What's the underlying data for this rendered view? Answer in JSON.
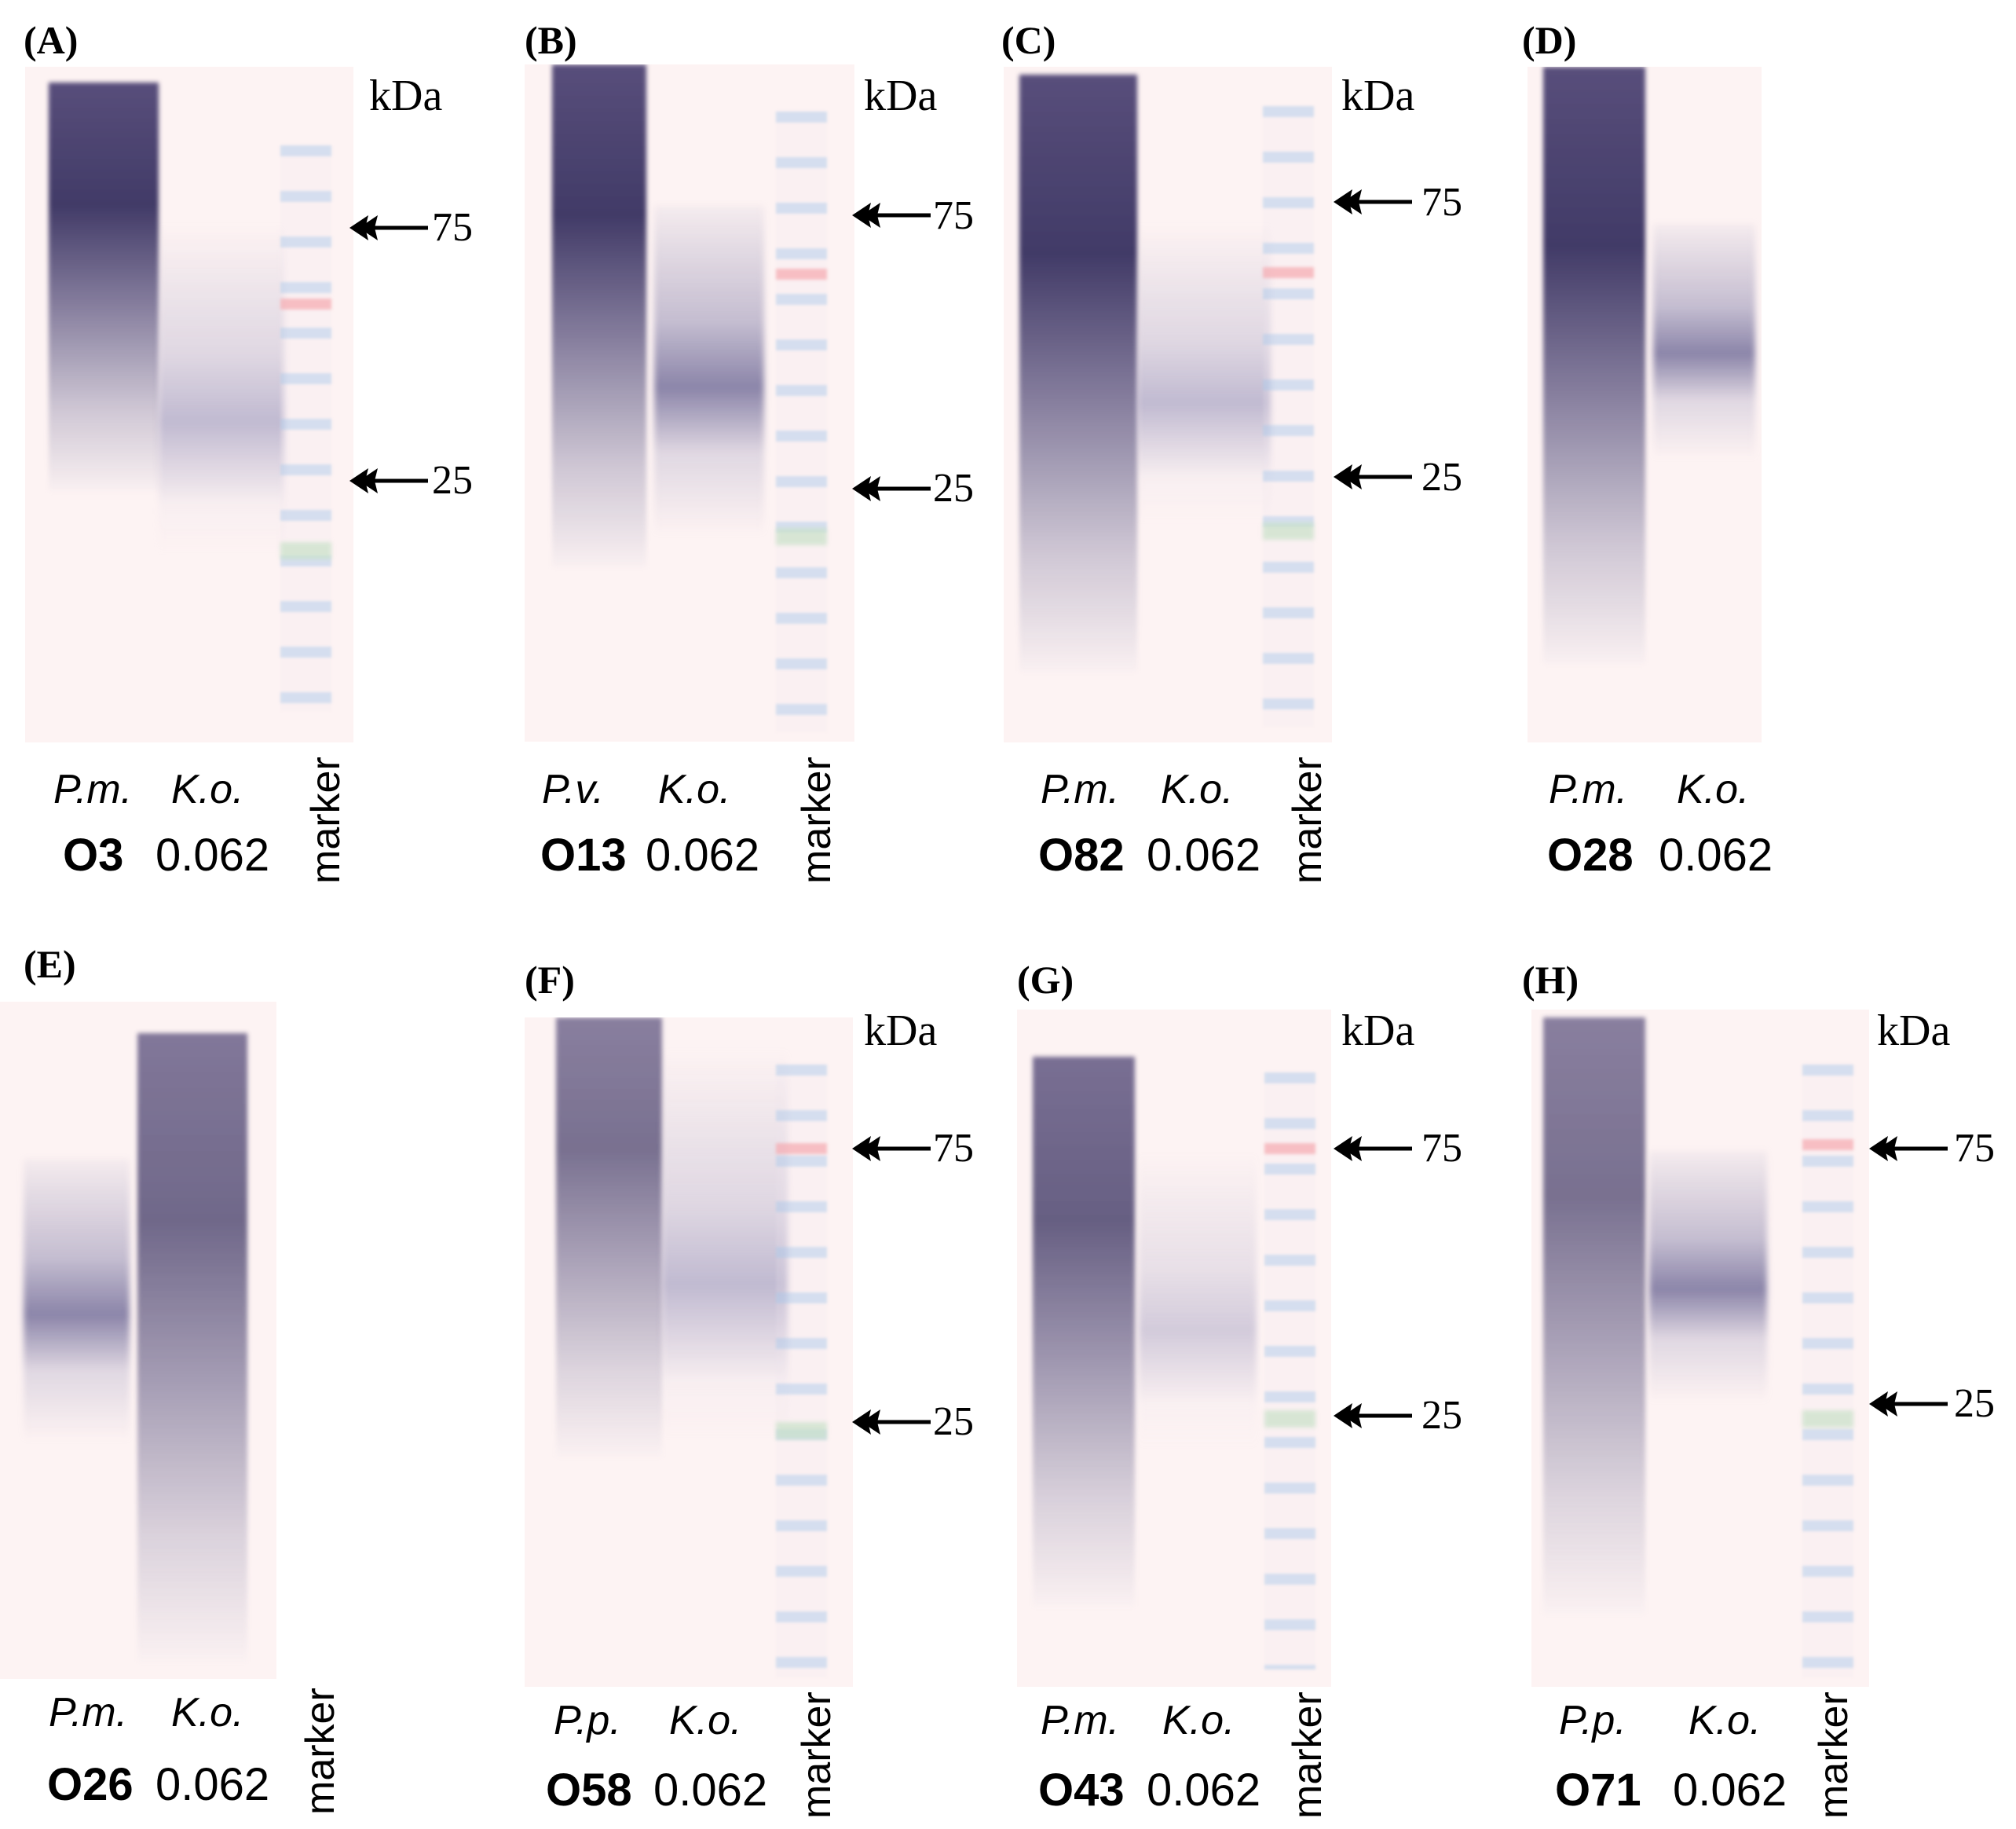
{
  "units": "kDa",
  "marker_label": "marker",
  "mw_values": {
    "high": "75",
    "low": "25"
  },
  "panels": [
    {
      "letter": "(A)",
      "lane1": "P.m.",
      "lane2": "K.o.",
      "serotype": "O3",
      "dose": "0.062",
      "has_marker": true
    },
    {
      "letter": "(B)",
      "lane1": "P.v.",
      "lane2": "K.o.",
      "serotype": "O13",
      "dose": "0.062",
      "has_marker": true
    },
    {
      "letter": "(C)",
      "lane1": "P.m.",
      "lane2": "K.o.",
      "serotype": "O82",
      "dose": "0.062",
      "has_marker": true
    },
    {
      "letter": "(D)",
      "lane1": "P.m.",
      "lane2": "K.o.",
      "serotype": "O28",
      "dose": "0.062",
      "has_marker": false
    },
    {
      "letter": "(E)",
      "lane1": "P.m.",
      "lane2": "K.o.",
      "serotype": "O26",
      "dose": "0.062",
      "has_marker": false
    },
    {
      "letter": "(F)",
      "lane1": "P.p.",
      "lane2": "K.o.",
      "serotype": "O58",
      "dose": "0.062",
      "has_marker": true
    },
    {
      "letter": "(G)",
      "lane1": "P.m.",
      "lane2": "K.o.",
      "serotype": "O43",
      "dose": "0.062",
      "has_marker": true
    },
    {
      "letter": "(H)",
      "lane1": "P.p.",
      "lane2": "K.o.",
      "serotype": "O71",
      "dose": "0.062",
      "has_marker": true
    }
  ]
}
